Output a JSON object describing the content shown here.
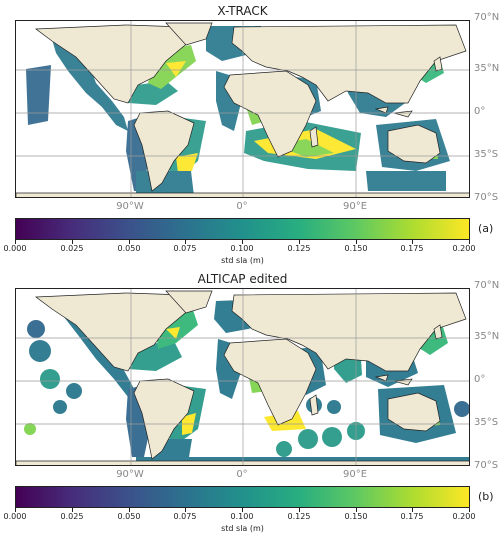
{
  "colors": {
    "land": "#efe9d4",
    "ocean": "#ffffff",
    "grid": "#9a9a9a",
    "track_low": "#2a788e",
    "track_mid": "#22a884",
    "track_high": "#fde725",
    "track_dark": "#31688e"
  },
  "panels": [
    {
      "title": "X-TRACK",
      "panel_label": "(a)",
      "colorbar_label": "std sla (m)",
      "lat_labels": [
        "70°N",
        "35°N",
        "0°",
        "35°S",
        "70°S"
      ],
      "lon_labels": [
        "90°W",
        "0°",
        "90°E"
      ],
      "colorbar_ticks": [
        "0.000",
        "0.025",
        "0.050",
        "0.075",
        "0.100",
        "0.125",
        "0.150",
        "0.175",
        "0.200"
      ]
    },
    {
      "title": "ALTICAP edited",
      "panel_label": "(b)",
      "colorbar_label": "std sla (m)",
      "lat_labels": [
        "70°N",
        "35°N",
        "0°",
        "35°S",
        "70°S"
      ],
      "lon_labels": [
        "90°W",
        "0°",
        "90°E"
      ],
      "colorbar_ticks": [
        "0.000",
        "0.025",
        "0.050",
        "0.075",
        "0.100",
        "0.125",
        "0.150",
        "0.175",
        "0.200"
      ]
    }
  ],
  "colormap": "viridis",
  "colorbar_range": [
    0.0,
    0.2
  ]
}
